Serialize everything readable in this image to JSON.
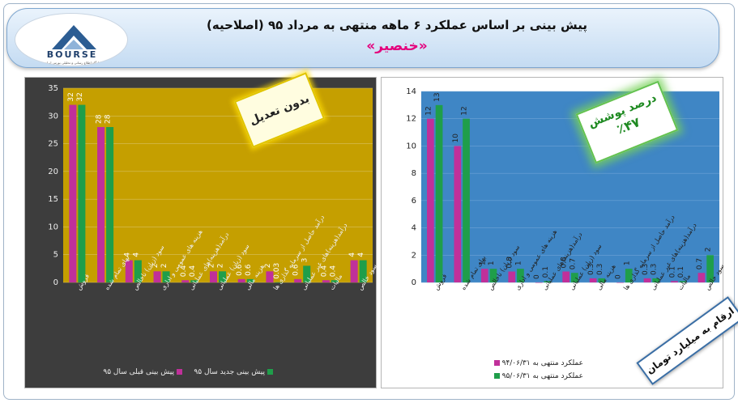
{
  "header": {
    "title": "پیش بینی بر اساس عملکرد ۶ ماهه منتهی به مرداد ۹۵ (اصلاحیه)",
    "subtitle": "«خنصیر»",
    "logo_text": "BOURSE",
    "logo_tagline": "پایگاه اطلاع رسانی و تحلیلی بورس ایران"
  },
  "badges": {
    "left": "بدون تعدیل",
    "right_line1": "درصد پوشش",
    "right_line2": "٪۴۷",
    "units": "ارقام به میلیارد تومان"
  },
  "colors": {
    "series_a": "#c0309a",
    "series_b": "#1f9e4a",
    "left_plot_bg": "#c59f00",
    "right_plot_bg": "#3f86c5",
    "dark_panel": "#3d3d3d",
    "subtitle": "#e4007c"
  },
  "chart_data": [
    {
      "type": "bar",
      "ylim": [
        0,
        35
      ],
      "yticks": [
        0,
        5,
        10,
        15,
        20,
        25,
        30,
        35
      ],
      "categories": [
        "فروش",
        "بهای تمام شده",
        "سود (زیان) ناخالص",
        "هزینه های عمومی و اداری",
        "درآمد(هزینه)های عملیاتی",
        "سود (زیان) عملیاتی",
        "هزینه مالی",
        "درآمد حاصل از سرمایه گذاری ها",
        "درآمد(هزینه)های غیر عملیاتی",
        "مالیات",
        "سود خالص"
      ],
      "series": [
        {
          "name": "پیش بینی قبلی سال ۹۵",
          "values": [
            32,
            28,
            4,
            2,
            0.4,
            2,
            0.6,
            2,
            0.6,
            0.4,
            4
          ],
          "labels": [
            "32",
            "28",
            "4",
            "2",
            "0.4",
            "2",
            "0.6",
            "2",
            "0.6",
            "0.4",
            "4"
          ]
        },
        {
          "name": "پیش بینی جدید سال ۹۵",
          "values": [
            32,
            28,
            4,
            2,
            0.4,
            2,
            0.6,
            0.03,
            3,
            0.4,
            4
          ],
          "labels": [
            "32",
            "28",
            "4",
            "2",
            "0.4",
            "2",
            "0.6",
            "0.03",
            "3",
            "0.4",
            "4"
          ]
        }
      ]
    },
    {
      "type": "bar",
      "ylim": [
        0,
        14
      ],
      "yticks": [
        0,
        2,
        4,
        6,
        8,
        10,
        12,
        14
      ],
      "categories": [
        "فروش",
        "بهای تمام شده",
        "سود (زیان) ناخالص",
        "هزینه های عمومی و اداری",
        "درآمد(هزینه)های عملیاتی",
        "سود (زیان) عملیاتی",
        "هزینه مالی",
        "درآمد حاصل از سرمایه گذاری ها",
        "درآمد(هزینه)های غیر عملیاتی",
        "مالیات",
        "سود خالص"
      ],
      "series": [
        {
          "name": "عملکرد منتهی به ۹۴/۰۶/۳۱",
          "values": [
            12,
            10,
            1,
            0.8,
            0,
            0.8,
            0.3,
            0,
            0.3,
            0.1,
            0.7
          ],
          "labels": [
            "12",
            "10",
            "1",
            "0.8",
            "0",
            "0.8",
            "0.3",
            "0",
            "0.3",
            "0.1",
            "0.7"
          ]
        },
        {
          "name": "عملکرد منتهی به ۹۵/۰۶/۳۱",
          "values": [
            13,
            12,
            1,
            1,
            0.1,
            0.7,
            0.3,
            1,
            0.3,
            0.1,
            2
          ],
          "labels": [
            "13",
            "12",
            "1",
            "1",
            "0.1",
            "0.7",
            "0.3",
            "1",
            "0.3",
            "0.1",
            "2"
          ]
        }
      ]
    }
  ]
}
